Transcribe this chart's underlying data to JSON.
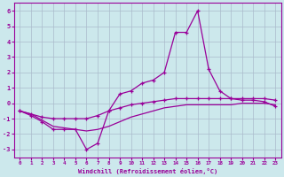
{
  "x": [
    0,
    1,
    2,
    3,
    4,
    5,
    6,
    7,
    8,
    9,
    10,
    11,
    12,
    13,
    14,
    15,
    16,
    17,
    18,
    19,
    20,
    21,
    22,
    23
  ],
  "line1": [
    -0.5,
    -0.8,
    -1.2,
    -1.7,
    -1.7,
    -1.7,
    -3.0,
    -2.6,
    -0.5,
    0.6,
    0.8,
    1.3,
    1.5,
    2.0,
    4.6,
    4.6,
    6.0,
    2.2,
    0.8,
    0.3,
    0.2,
    0.2,
    0.1,
    -0.2
  ],
  "line2": [
    -0.5,
    -0.7,
    -0.9,
    -1.0,
    -1.0,
    -1.0,
    -1.0,
    -0.8,
    -0.5,
    -0.3,
    -0.1,
    0.0,
    0.1,
    0.2,
    0.3,
    0.3,
    0.3,
    0.3,
    0.3,
    0.3,
    0.3,
    0.3,
    0.3,
    0.2
  ],
  "line3": [
    -0.5,
    -0.7,
    -1.1,
    -1.5,
    -1.6,
    -1.7,
    -1.8,
    -1.7,
    -1.5,
    -1.2,
    -0.9,
    -0.7,
    -0.5,
    -0.3,
    -0.2,
    -0.1,
    -0.1,
    -0.1,
    -0.1,
    -0.1,
    0.0,
    0.0,
    0.0,
    -0.1
  ],
  "line_color": "#990099",
  "bg_color": "#cce8ec",
  "grid_color": "#aabbcc",
  "xlabel": "Windchill (Refroidissement éolien,°C)",
  "xlim": [
    -0.5,
    23.5
  ],
  "ylim": [
    -3.5,
    6.5
  ],
  "yticks": [
    -3,
    -2,
    -1,
    0,
    1,
    2,
    3,
    4,
    5,
    6
  ],
  "xticks": [
    0,
    1,
    2,
    3,
    4,
    5,
    6,
    7,
    8,
    9,
    10,
    11,
    12,
    13,
    14,
    15,
    16,
    17,
    18,
    19,
    20,
    21,
    22,
    23
  ]
}
